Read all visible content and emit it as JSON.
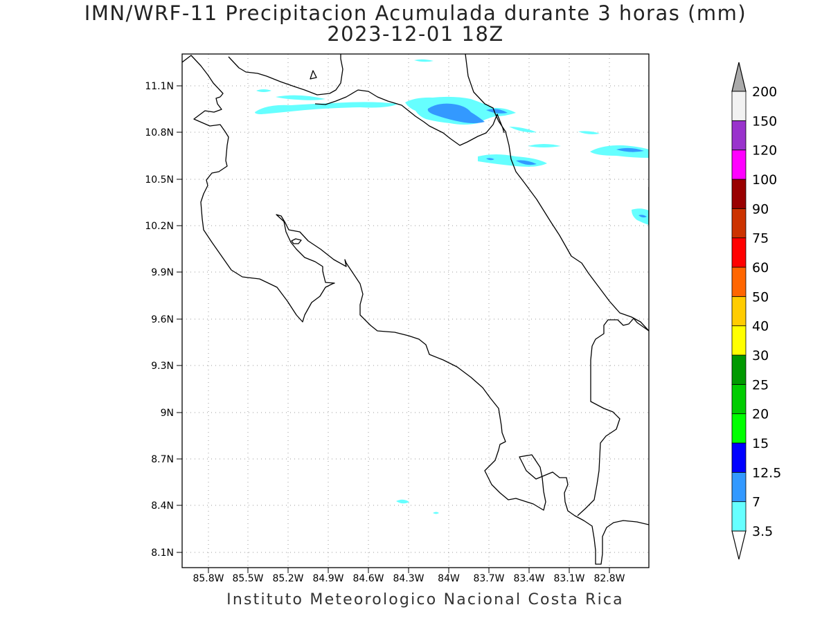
{
  "title": {
    "line1": "IMN/WRF-11 Precipitacion Acumulada durante 3 horas (mm)",
    "line2": "2023-12-01 18Z"
  },
  "credit": "Instituto Meteorologico Nacional Costa Rica",
  "axes": {
    "lon_labels": [
      "85.8W",
      "85.5W",
      "85.2W",
      "84.9W",
      "84.6W",
      "84.3W",
      "84W",
      "83.7W",
      "83.4W",
      "83.1W",
      "82.8W"
    ],
    "lat_labels": [
      "11.1N",
      "10.8N",
      "10.5N",
      "10.2N",
      "9.9N",
      "9.6N",
      "9.3N",
      "9N",
      "8.7N",
      "8.4N",
      "8.1N"
    ],
    "grid": "dotted"
  },
  "legend": {
    "levels": [
      {
        "label": "3.5",
        "color": "#66ffff"
      },
      {
        "label": "7",
        "color": "#3399ff"
      },
      {
        "label": "12.5",
        "color": "#0000ff"
      },
      {
        "label": "15",
        "color": "#00ff00"
      },
      {
        "label": "20",
        "color": "#00cc00"
      },
      {
        "label": "25",
        "color": "#009900"
      },
      {
        "label": "30",
        "color": "#ffff00"
      },
      {
        "label": "40",
        "color": "#ffcc00"
      },
      {
        "label": "50",
        "color": "#ff6600"
      },
      {
        "label": "60",
        "color": "#ff0000"
      },
      {
        "label": "75",
        "color": "#cc3300"
      },
      {
        "label": "90",
        "color": "#990000"
      },
      {
        "label": "100",
        "color": "#ff00ff"
      },
      {
        "label": "120",
        "color": "#9933cc"
      },
      {
        "label": "150",
        "color": "#f2f2f2"
      },
      {
        "label": "200",
        "color": "#aaaaaa"
      }
    ]
  }
}
